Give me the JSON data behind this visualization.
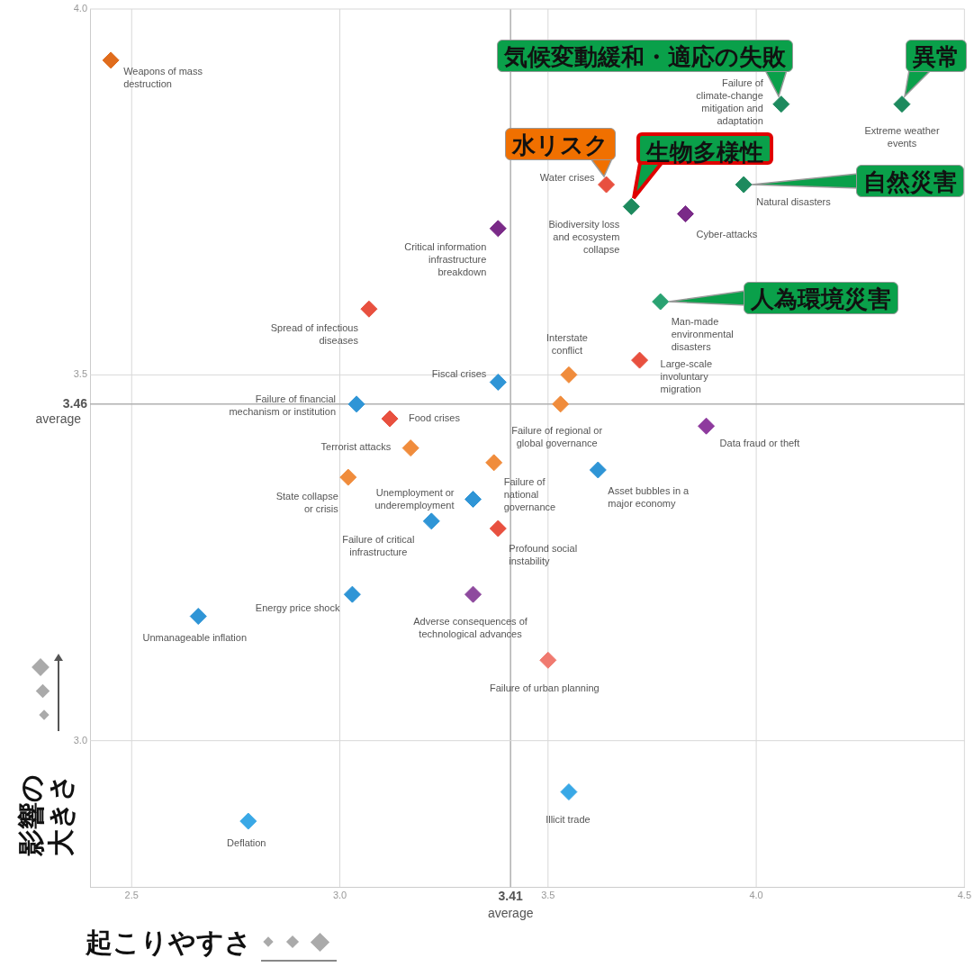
{
  "chart_data": {
    "type": "scatter",
    "xlabel": "起こりやすさ",
    "ylabel": "影響の大きさ",
    "marker": "diamond",
    "grid": true,
    "xlim": [
      2.4,
      4.5
    ],
    "ylim": [
      2.8,
      4.0
    ],
    "xticks": [
      {
        "value": 2.5,
        "label": "2.5"
      },
      {
        "value": 3.0,
        "label": "3.0"
      },
      3.41,
      {
        "value": 3.5,
        "label": "3.5"
      },
      {
        "value": 4.0,
        "label": "4.0"
      },
      {
        "value": 4.5,
        "label": "4.5"
      }
    ],
    "yticks": [
      {
        "value": 3.0,
        "label": "3.0"
      },
      3.46,
      {
        "value": 3.5,
        "label": "3.5"
      },
      {
        "value": 4.0,
        "label": "4.0"
      }
    ],
    "x": [
      2.45,
      4.06,
      4.35,
      3.64,
      3.7,
      3.97,
      3.83,
      3.38,
      3.07,
      3.77,
      3.38,
      3.55,
      3.72,
      3.53,
      3.04,
      3.12,
      3.88,
      3.17,
      3.37,
      3.02,
      3.62,
      3.32,
      3.22,
      3.38,
      3.03,
      3.32,
      2.66,
      3.5,
      3.55,
      2.78
    ],
    "values": [
      3.93,
      3.87,
      3.87,
      3.76,
      3.73,
      3.76,
      3.72,
      3.7,
      3.59,
      3.6,
      3.49,
      3.5,
      3.52,
      3.46,
      3.46,
      3.44,
      3.43,
      3.4,
      3.38,
      3.36,
      3.37,
      3.33,
      3.3,
      3.29,
      3.2,
      3.2,
      3.17,
      3.11,
      2.93,
      2.89
    ],
    "colors": [
      "#e06c1c",
      "#1d8a5e",
      "#1d8a5e",
      "#e8503f",
      "#1d8a5e",
      "#1d8a5e",
      "#7a2a88",
      "#7a2a88",
      "#e8503f",
      "#2aa272",
      "#2f95d6",
      "#f08c3c",
      "#e8503f",
      "#f08c3c",
      "#2f95d6",
      "#e8503f",
      "#8e3a9e",
      "#f08c3c",
      "#f08c3c",
      "#f08c3c",
      "#2f95d6",
      "#2f95d6",
      "#2f95d6",
      "#e8503f",
      "#2f95d6",
      "#8e4a9e",
      "#2f95d6",
      "#f07a70",
      "#39a8e6",
      "#39a8e6"
    ],
    "value_labels": [
      "Weapons of mass destruction",
      "Failure of climate-change mitigation and adaptation",
      "Extreme weather events",
      "Water crises",
      "Biodiversity loss and ecosystem collapse",
      "Natural disasters",
      "Cyber-attacks",
      "Critical information infrastructure breakdown",
      "Spread of infectious diseases",
      "Man-made environmental disasters",
      "Fiscal crises",
      "Interstate conflict",
      "Large-scale involuntary migration",
      "Failure of regional or global governance",
      "Failure of financial mechanism or institution",
      "Food crises",
      "Data fraud or theft",
      "Terrorist attacks",
      "Failure of national governance",
      "State collapse or crisis",
      "Asset bubbles in a major economy",
      "Unemployment or underemployment",
      "Failure of critical infrastructure",
      "Profound social instability",
      "Energy price shock",
      "Adverse consequences of technological advances",
      "Unmanageable inflation",
      "Failure of urban planning",
      "Illicit trade",
      "Deflation"
    ],
    "annotations": [
      {
        "text": "気候変動緩和・適応の失敗",
        "x": 4.06,
        "y": 3.87
      },
      {
        "text": "異常",
        "x": 4.35,
        "y": 3.87
      },
      {
        "text": "水リスク",
        "x": 3.64,
        "y": 3.76
      },
      {
        "text": "生物多様性",
        "x": 3.7,
        "y": 3.73
      },
      {
        "text": "自然災害",
        "x": 3.97,
        "y": 3.76
      },
      {
        "text": "人為環境災害",
        "x": 3.77,
        "y": 3.6
      },
      "average",
      "average"
    ]
  }
}
